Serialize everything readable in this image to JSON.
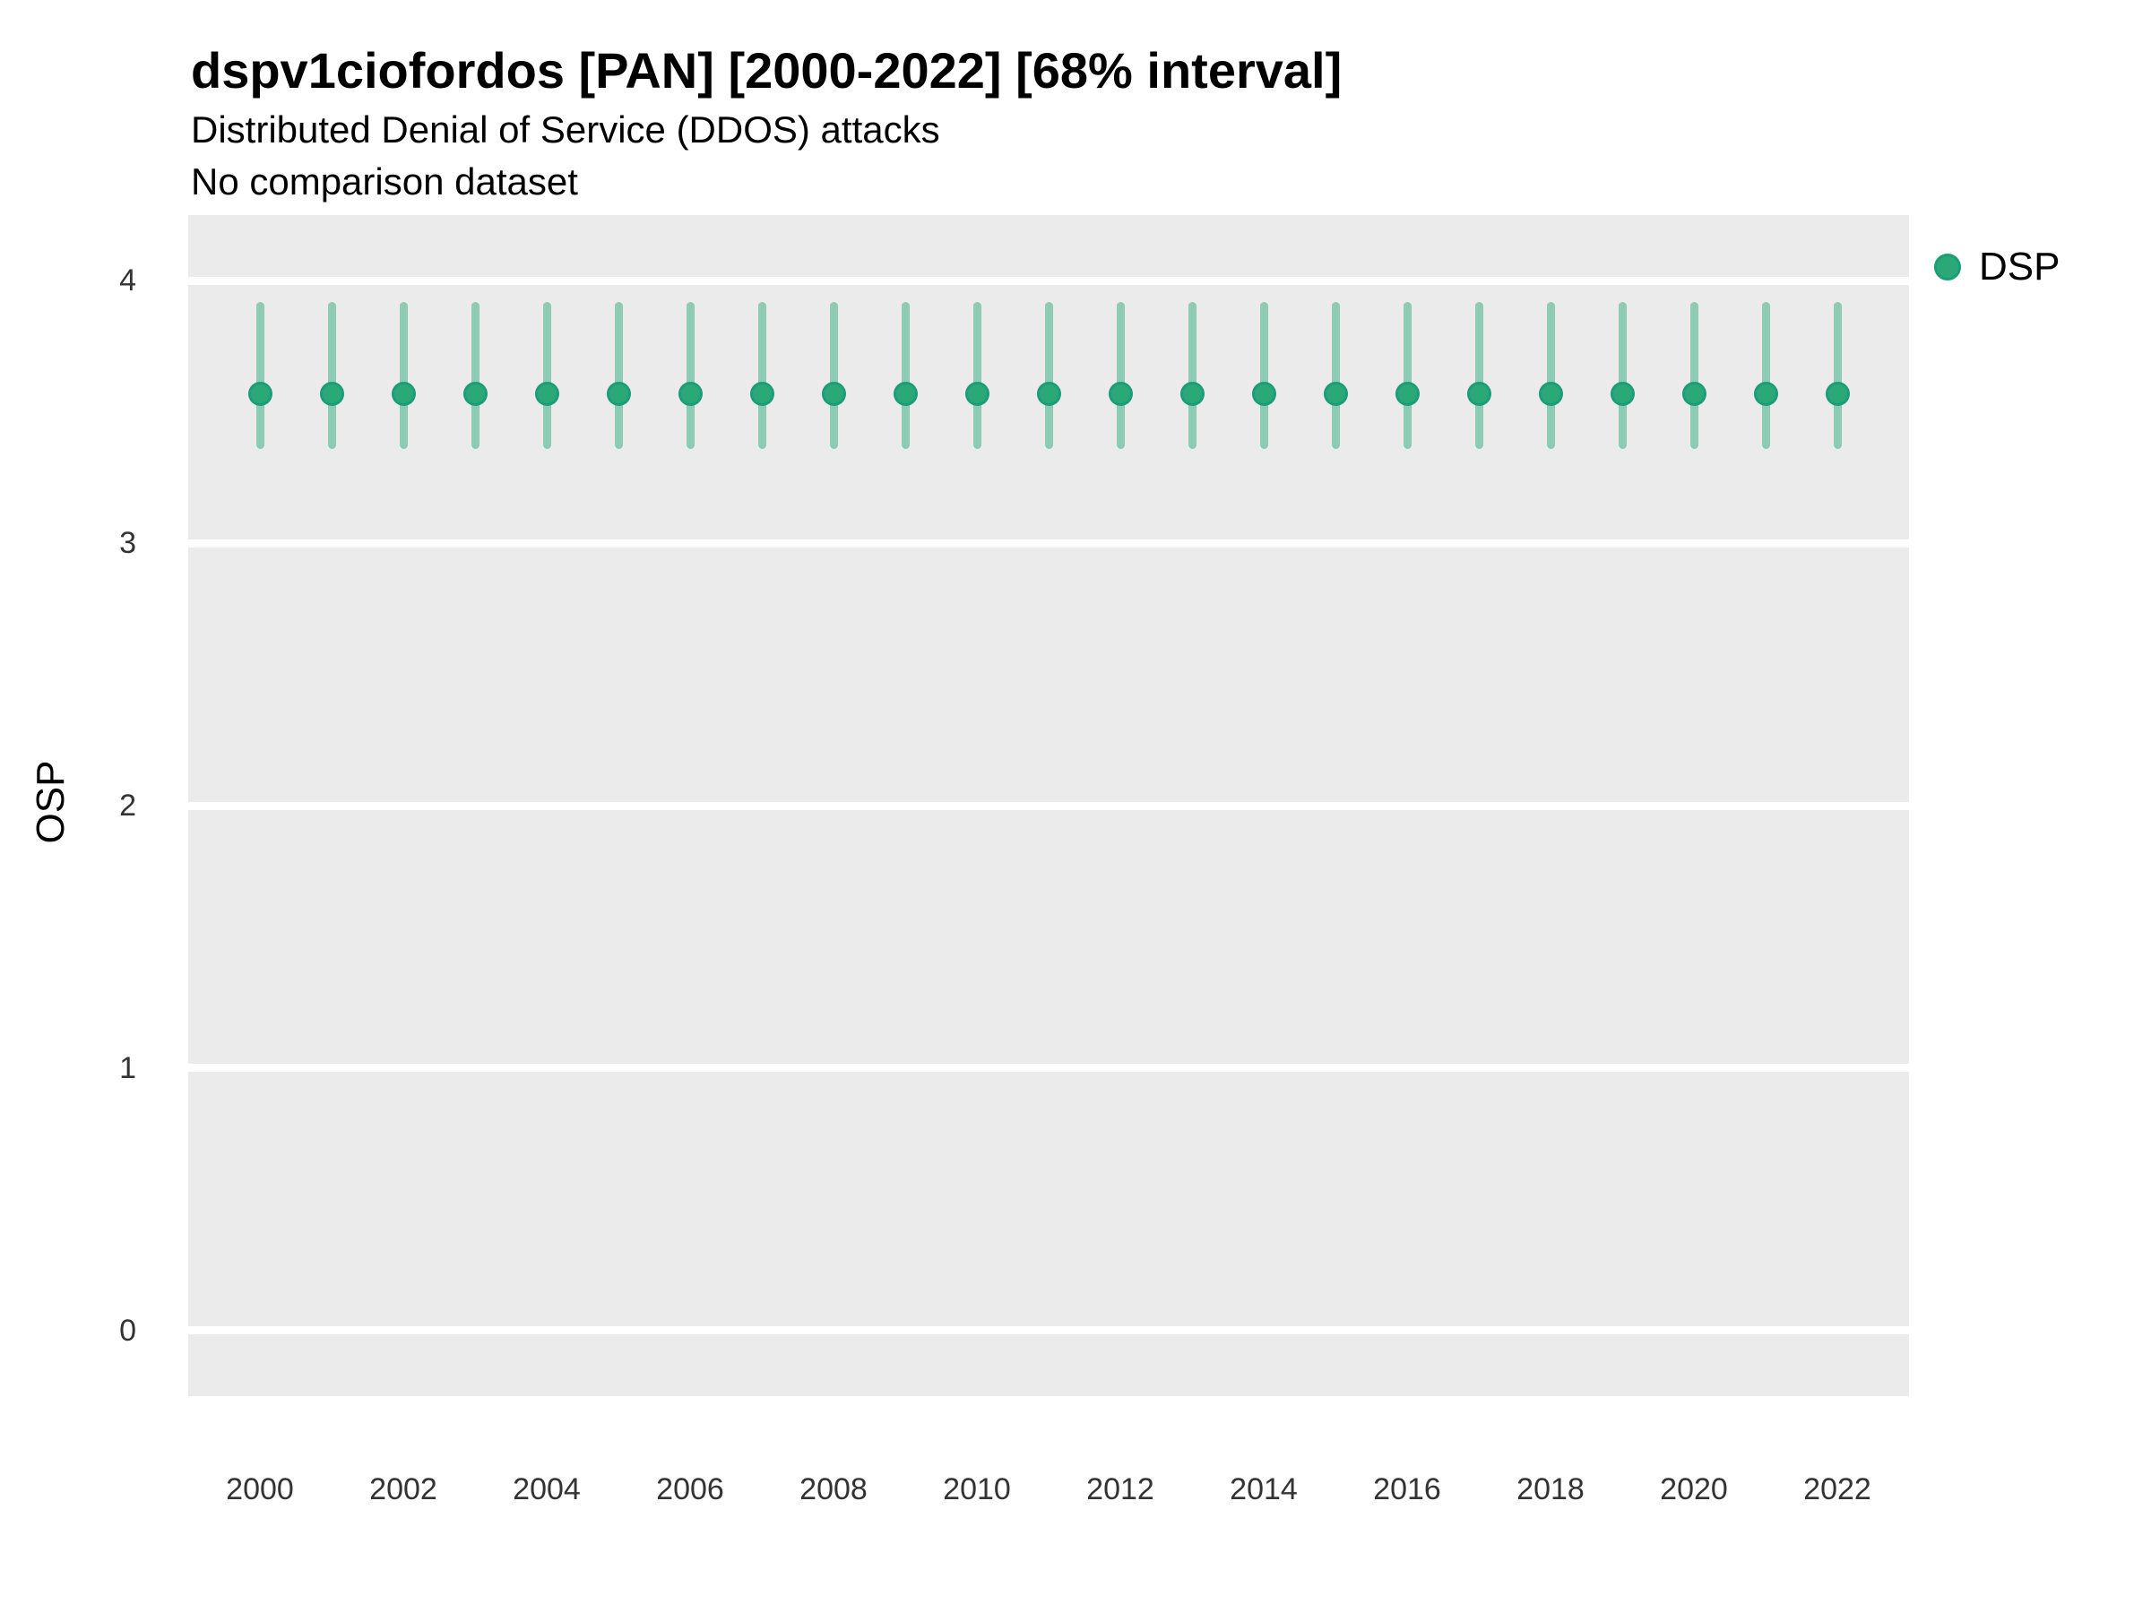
{
  "header": {
    "title": "dspv1ciofordos [PAN] [2000-2022] [68% interval]",
    "subtitle": "Distributed Denial of Service (DDOS) attacks",
    "comparison_note": "No comparison dataset"
  },
  "legend": {
    "items": [
      {
        "label": "DSP",
        "color": "#2aa878",
        "stroke": "#1b9e77"
      }
    ]
  },
  "chart_data": {
    "type": "scatter",
    "title": "dspv1ciofordos [PAN] [2000-2022] [68% interval]",
    "subtitle": "Distributed Denial of Service (DDOS) attacks",
    "note": "No comparison dataset",
    "xlabel": "",
    "ylabel": "OSP",
    "interval_level": "68%",
    "legend_position": "right-top",
    "grid": "horizontal-major-only",
    "x": [
      2000,
      2001,
      2002,
      2003,
      2004,
      2005,
      2006,
      2007,
      2008,
      2009,
      2010,
      2011,
      2012,
      2013,
      2014,
      2015,
      2016,
      2017,
      2018,
      2019,
      2020,
      2021,
      2022
    ],
    "series": [
      {
        "name": "DSP",
        "values": [
          3.57,
          3.57,
          3.57,
          3.57,
          3.57,
          3.57,
          3.57,
          3.57,
          3.57,
          3.57,
          3.57,
          3.57,
          3.57,
          3.57,
          3.57,
          3.57,
          3.57,
          3.57,
          3.57,
          3.57,
          3.57,
          3.57,
          3.57
        ],
        "interval_low": [
          3.36,
          3.36,
          3.36,
          3.36,
          3.36,
          3.36,
          3.36,
          3.36,
          3.36,
          3.36,
          3.36,
          3.36,
          3.36,
          3.36,
          3.36,
          3.36,
          3.36,
          3.36,
          3.36,
          3.36,
          3.36,
          3.36,
          3.36
        ],
        "interval_high": [
          3.92,
          3.92,
          3.92,
          3.92,
          3.92,
          3.92,
          3.92,
          3.92,
          3.92,
          3.92,
          3.92,
          3.92,
          3.92,
          3.92,
          3.92,
          3.92,
          3.92,
          3.92,
          3.92,
          3.92,
          3.92,
          3.92,
          3.92
        ]
      }
    ],
    "xticks": [
      2000,
      2002,
      2004,
      2006,
      2008,
      2010,
      2012,
      2014,
      2016,
      2018,
      2020,
      2022
    ],
    "yticks": [
      0,
      1,
      2,
      3,
      4
    ],
    "xlim": [
      1999,
      2023
    ],
    "ylim": [
      -0.25,
      4.25
    ],
    "colors": {
      "point": "#2aa878",
      "point_stroke": "#1b9e77",
      "interval": "#8ecbb3",
      "panel_bg": "#ebebeb",
      "gridline": "#ffffff",
      "tick_text": "#333333"
    }
  }
}
